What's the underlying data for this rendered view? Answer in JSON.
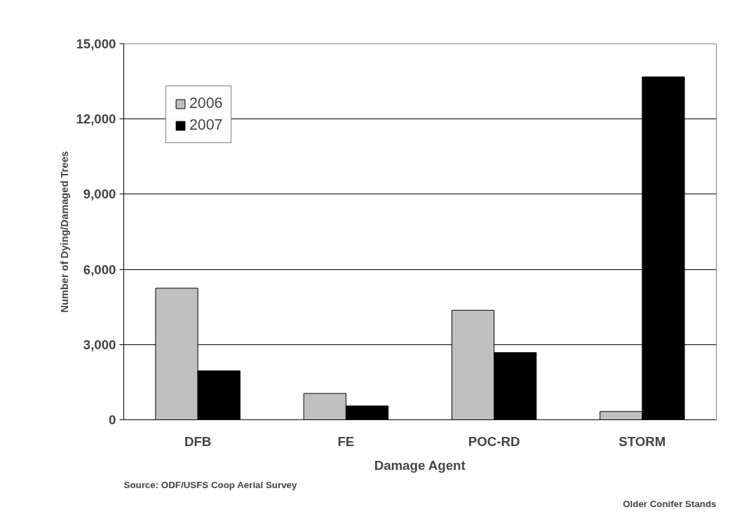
{
  "chart_data": {
    "type": "bar",
    "xlabel": "Damage Agent",
    "ylabel": "Number of Dying/Damaged Trees",
    "categories": [
      "DFB",
      "FE",
      "POC-RD",
      "STORM"
    ],
    "series": [
      {
        "name": "2006",
        "color": "#c0c0c0",
        "values": [
          5250,
          1050,
          4370,
          330
        ]
      },
      {
        "name": "2007",
        "color": "#000000",
        "values": [
          1950,
          550,
          2680,
          13680
        ]
      }
    ],
    "ylim": [
      0,
      15000
    ],
    "yticks": [
      {
        "value": 0,
        "label": "0"
      },
      {
        "value": 3000,
        "label": "3,000"
      },
      {
        "value": 6000,
        "label": "6,000"
      },
      {
        "value": 9000,
        "label": "9,000"
      },
      {
        "value": 12000,
        "label": "12,000"
      },
      {
        "value": 15000,
        "label": "15,000"
      }
    ],
    "grid": "y",
    "legend": "top left",
    "annotations": [
      "Source: ODF/USFS Coop Aerial Survey",
      "Older Conifer Stands"
    ]
  }
}
